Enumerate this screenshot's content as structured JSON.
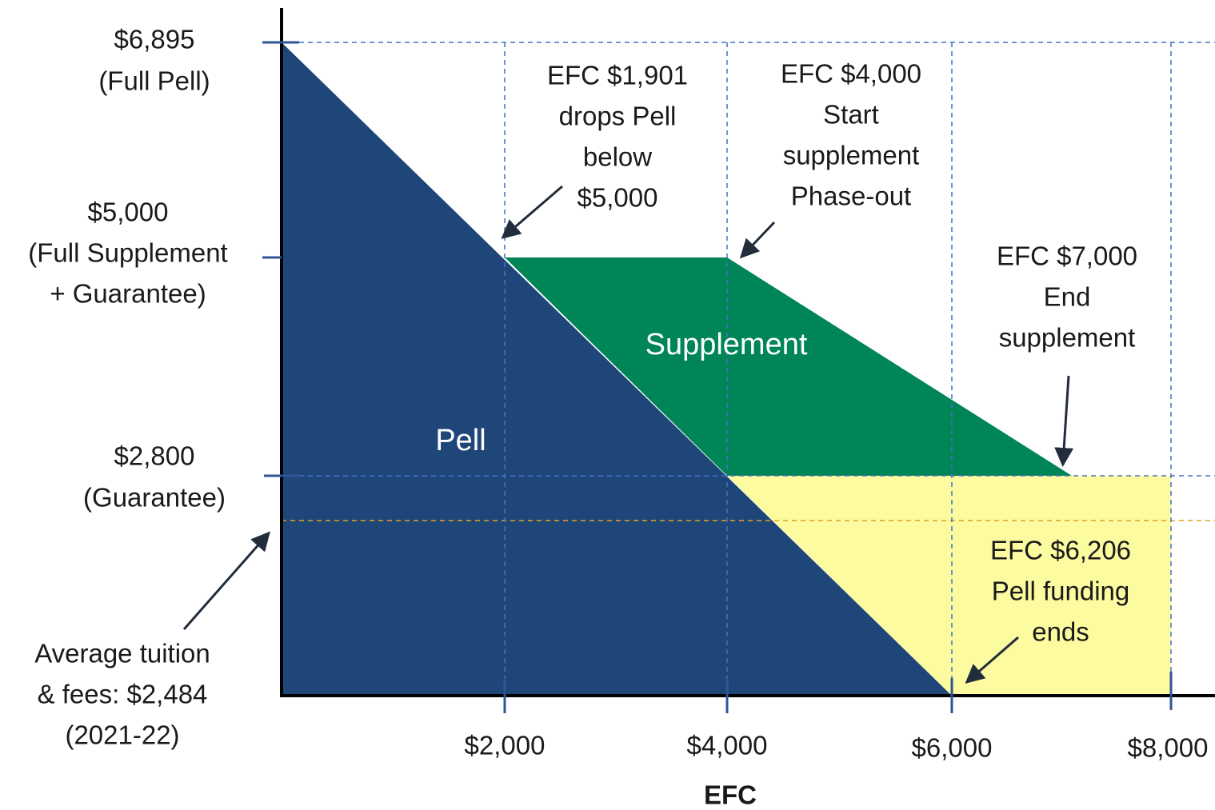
{
  "y_labels": [
    {
      "lines": [
        "$6,895",
        "(Full Pell)"
      ]
    },
    {
      "lines": [
        "$5,000",
        "(Full Supplement",
        "+ Guarantee)"
      ]
    },
    {
      "lines": [
        "$2,800",
        "(Guarantee)"
      ]
    },
    {
      "lines": [
        "Average tuition",
        "& fees: $2,484",
        "(2021-22)"
      ]
    }
  ],
  "x_labels": [
    "$2,000",
    "$4,000",
    "$6,000",
    "$8,000"
  ],
  "x_axis_title": "EFC",
  "regions": [
    {
      "label": "Pell"
    },
    {
      "label": "Supplement"
    }
  ],
  "annotations": [
    {
      "lines": [
        "EFC $1,901",
        "drops Pell",
        "below",
        "$5,000"
      ]
    },
    {
      "lines": [
        "EFC $4,000",
        "Start",
        "supplement",
        "Phase-out"
      ]
    },
    {
      "lines": [
        "EFC $7,000",
        "End",
        "supplement"
      ]
    },
    {
      "lines": [
        "EFC $6,206",
        "Pell funding",
        "ends"
      ]
    }
  ]
}
